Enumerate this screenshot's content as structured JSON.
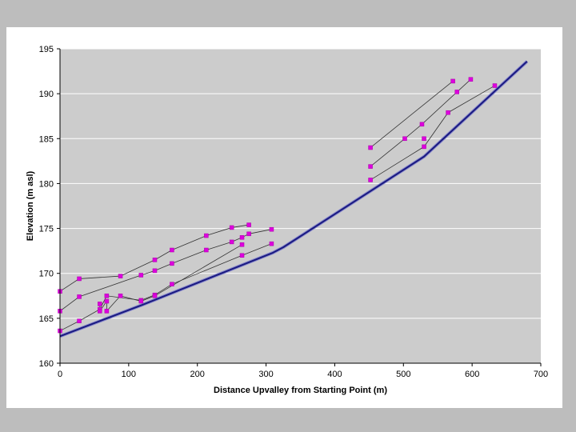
{
  "chart_data": {
    "type": "scatter",
    "title": "",
    "xlabel": "Distance Upvalley from Starting Point (m)",
    "ylabel": "Elevation (m asl)",
    "xlim": [
      0,
      700
    ],
    "ylim": [
      160,
      195
    ],
    "xticks": [
      0,
      100,
      200,
      300,
      400,
      500,
      600,
      700
    ],
    "yticks": [
      160,
      165,
      170,
      175,
      180,
      185,
      190,
      195
    ],
    "grid": true,
    "legend": "none",
    "colors": {
      "plot_bg": "#cccccc",
      "grid": "#ffffff",
      "valley_floor": "#1a1a80",
      "marker": "#dd00dd",
      "terrace_line": "#333333"
    },
    "valley_floor": {
      "x": [
        0,
        120,
        310,
        325,
        530,
        680
      ],
      "y": [
        163,
        166.5,
        172.3,
        172.9,
        183,
        193.6
      ]
    },
    "series": [
      {
        "x": [
          0,
          28,
          88,
          138,
          163,
          213,
          250,
          275
        ],
        "y": [
          168,
          169.4,
          169.7,
          171.5,
          172.6,
          174.2,
          175.1,
          175.4
        ]
      },
      {
        "x": [
          0,
          28,
          118,
          138,
          163,
          213,
          250,
          265,
          275,
          308
        ],
        "y": [
          165.8,
          167.4,
          169.8,
          170.3,
          171.1,
          172.6,
          173.5,
          174,
          174.4,
          174.9
        ]
      },
      {
        "x": [
          0,
          28,
          58,
          68,
          118,
          138,
          163,
          265,
          308
        ],
        "y": [
          163.6,
          164.7,
          166,
          167.5,
          167,
          167.6,
          168.8,
          172,
          173.3
        ]
      },
      {
        "x": [
          58,
          58,
          68,
          68,
          88,
          118,
          138,
          265
        ],
        "y": [
          166.6,
          165.8,
          166.9,
          165.8,
          167.5,
          166.9,
          167.5,
          173.2
        ]
      },
      {
        "x": [
          452,
          572
        ],
        "y": [
          184,
          191.4
        ]
      },
      {
        "x": [
          452,
          502,
          527,
          578,
          598
        ],
        "y": [
          181.9,
          185,
          186.6,
          190.2,
          191.6
        ]
      },
      {
        "x": [
          452,
          530,
          565,
          633
        ],
        "y": [
          180.4,
          184.1,
          187.9,
          190.9
        ]
      },
      {
        "x": [
          530
        ],
        "y": [
          185
        ]
      }
    ]
  }
}
